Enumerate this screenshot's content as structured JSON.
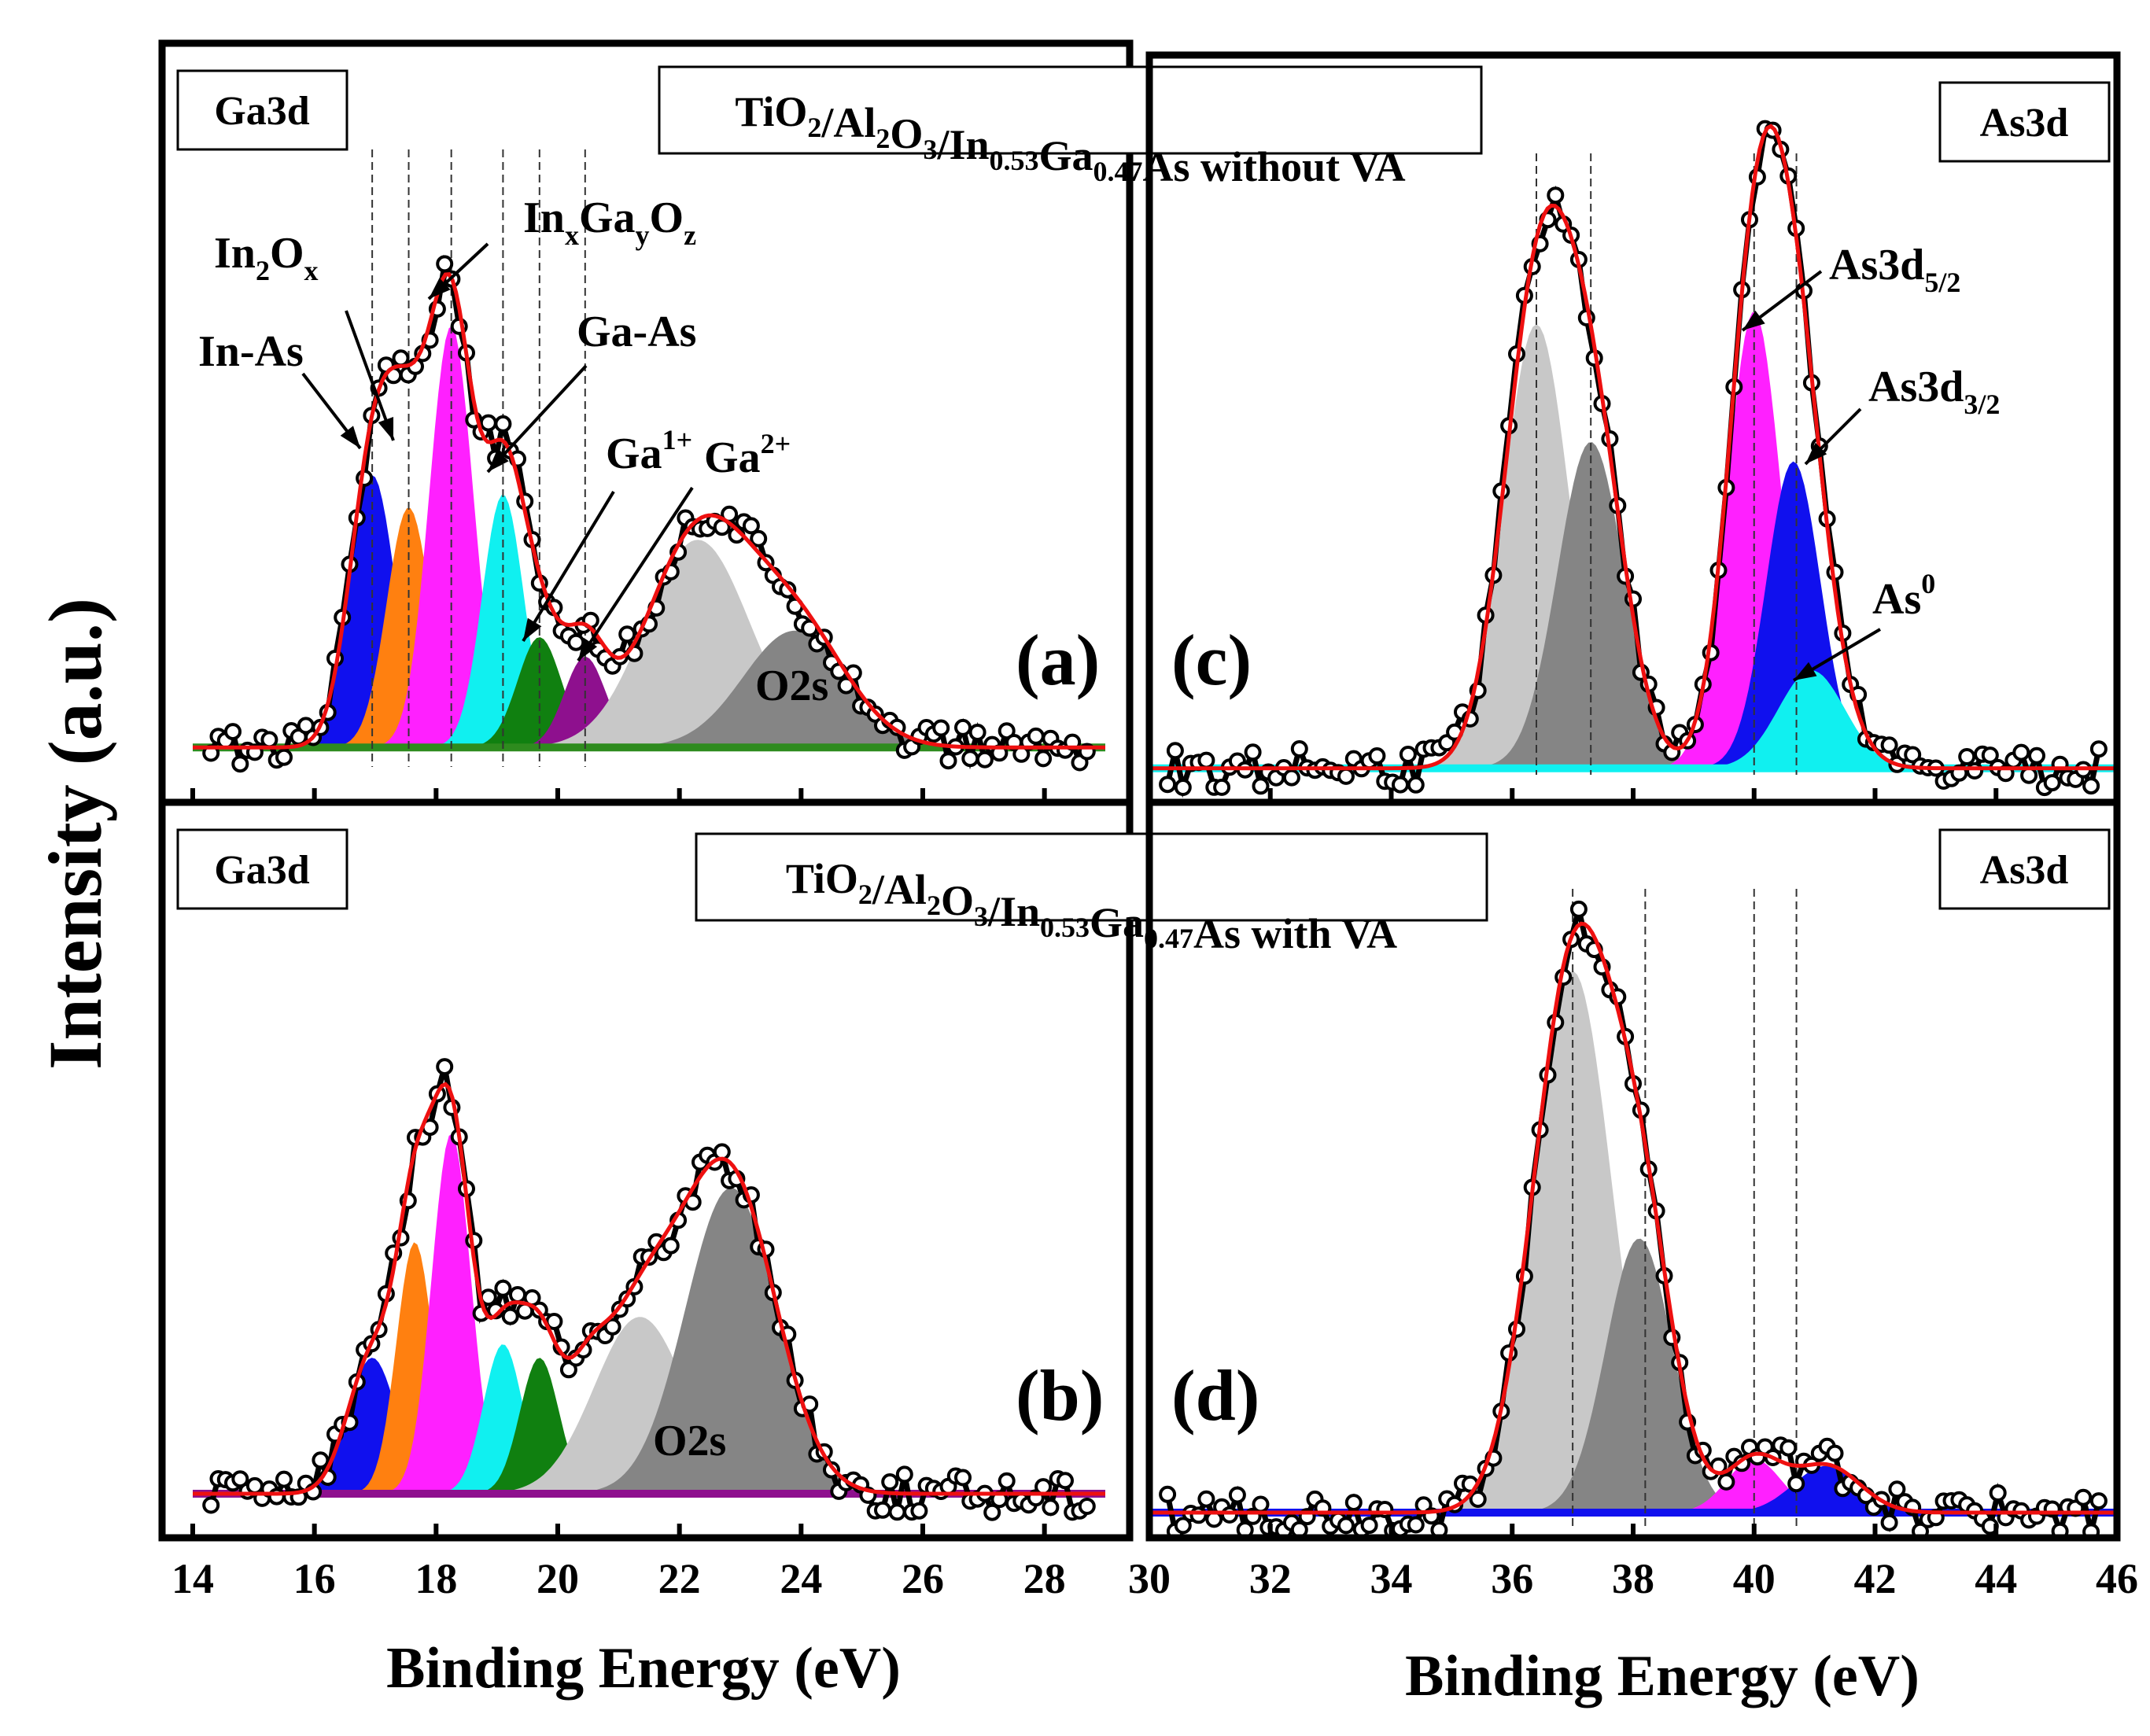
{
  "figure": {
    "ylabel": "Intensity (a.u.)",
    "xlabel_left": "Binding Energy (eV)",
    "xlabel_right": "Binding Energy (eV)"
  },
  "chart_data": [
    {
      "id": "a",
      "type": "line",
      "panel_label": "(a)",
      "core_level": "Ga3d",
      "title": "TiO2/Al2O3/In0.53Ga0.47As without VA",
      "xlim": [
        14,
        29
      ],
      "ylim": [
        0,
        100
      ],
      "baseline": 3,
      "baseline_color": "#2e8b1e",
      "components": [
        {
          "name": "In-As",
          "center": 16.95,
          "height": 42,
          "width": 0.38,
          "color": "#1010ee"
        },
        {
          "name": "In2Ox",
          "center": 17.55,
          "height": 37,
          "width": 0.36,
          "color": "#ff8010"
        },
        {
          "name": "InxGayOz",
          "center": 18.25,
          "height": 65,
          "width": 0.36,
          "color": "#ff20ff"
        },
        {
          "name": "Ga-As",
          "center": 19.1,
          "height": 39,
          "width": 0.34,
          "color": "#10f0f0"
        },
        {
          "name": "Ga1+",
          "center": 19.7,
          "height": 17,
          "width": 0.36,
          "color": "#108010"
        },
        {
          "name": "Ga2+",
          "center": 20.45,
          "height": 14,
          "width": 0.34,
          "color": "#8e108e"
        },
        {
          "name": "",
          "center": 22.3,
          "height": 32,
          "width": 0.85,
          "color": "#c8c8c8"
        },
        {
          "name": "O2s",
          "center": 23.9,
          "height": 18,
          "width": 0.85,
          "color": "#858585"
        }
      ],
      "vlines": [
        16.95,
        17.55,
        18.25,
        19.1,
        19.7,
        20.45
      ],
      "annotations": [
        {
          "text": "In-As",
          "sub": []
        },
        {
          "text": "In2Ox",
          "sub": [
            "2",
            "x"
          ]
        },
        {
          "text": "InxGayOz",
          "sub": [
            "x",
            "y",
            "z"
          ]
        },
        {
          "text": "Ga-As",
          "sub": []
        },
        {
          "text": "Ga1+",
          "sup": "1+"
        },
        {
          "text": "Ga2+",
          "sup": "2+"
        },
        {
          "text": "O2s",
          "sub": []
        }
      ]
    },
    {
      "id": "b",
      "type": "line",
      "panel_label": "(b)",
      "core_level": "Ga3d",
      "title": "TiO2/Al2O3/In0.53Ga0.47As with VA",
      "xlim": [
        14,
        29
      ],
      "ylim": [
        0,
        100
      ],
      "baseline": 3,
      "baseline_color": "#8e108e",
      "components": [
        {
          "name": "In-As",
          "center": 16.95,
          "height": 20,
          "width": 0.4,
          "color": "#1010ee"
        },
        {
          "name": "In2Ox",
          "center": 17.65,
          "height": 37,
          "width": 0.3,
          "color": "#ff8010"
        },
        {
          "name": "InxGayOz",
          "center": 18.25,
          "height": 53,
          "width": 0.32,
          "color": "#ff20ff"
        },
        {
          "name": "Ga-As",
          "center": 19.1,
          "height": 22,
          "width": 0.32,
          "color": "#10f0f0"
        },
        {
          "name": "Ga1+",
          "center": 19.7,
          "height": 20,
          "width": 0.32,
          "color": "#108010"
        },
        {
          "name": "Ga2+",
          "center": 20.45,
          "height": 8,
          "width": 0.32,
          "color": "#8e108e"
        },
        {
          "name": "",
          "center": 21.35,
          "height": 26,
          "width": 0.75,
          "color": "#c8c8c8"
        },
        {
          "name": "O2s",
          "center": 22.85,
          "height": 45,
          "width": 0.75,
          "color": "#858585"
        }
      ],
      "annotations": [
        {
          "text": "O2s",
          "sub": []
        }
      ]
    },
    {
      "id": "c",
      "type": "line",
      "panel_label": "(c)",
      "core_level": "As3d",
      "xlim": [
        30,
        46
      ],
      "ylim": [
        0,
        100
      ],
      "baseline": 1,
      "baseline_color": "#10f0f0",
      "components": [
        {
          "name": "",
          "center": 36.4,
          "height": 68,
          "width": 0.55,
          "color": "#c8c8c8"
        },
        {
          "name": "",
          "center": 37.3,
          "height": 50,
          "width": 0.55,
          "color": "#858585"
        },
        {
          "name": "As3d5/2",
          "center": 40.0,
          "height": 70,
          "width": 0.45,
          "color": "#ff20ff"
        },
        {
          "name": "As3d3/2",
          "center": 40.65,
          "height": 47,
          "width": 0.45,
          "color": "#1010ee"
        },
        {
          "name": "As0",
          "center": 40.95,
          "height": 15,
          "width": 0.55,
          "color": "#10f0f0"
        }
      ],
      "vlines": [
        36.4,
        37.3,
        40.0,
        40.7
      ],
      "annotations": [
        {
          "text": "As3d5/2",
          "sub": "5/2"
        },
        {
          "text": "As3d3/2",
          "sub": "3/2"
        },
        {
          "text": "As0",
          "sup": "0"
        }
      ]
    },
    {
      "id": "d",
      "type": "line",
      "panel_label": "(d)",
      "core_level": "As3d",
      "xlim": [
        30,
        46
      ],
      "xticks": [
        30,
        32,
        34,
        36,
        38,
        40,
        42,
        44,
        46
      ],
      "ylim": [
        0,
        100
      ],
      "baseline": 2,
      "baseline_color": "#1010ee",
      "components": [
        {
          "name": "",
          "center": 37.0,
          "height": 81,
          "width": 0.65,
          "color": "#c8c8c8"
        },
        {
          "name": "",
          "center": 38.1,
          "height": 41,
          "width": 0.55,
          "color": "#858585"
        },
        {
          "name": "",
          "center": 40.0,
          "height": 8,
          "width": 0.45,
          "color": "#ff20ff"
        },
        {
          "name": "",
          "center": 41.2,
          "height": 7,
          "width": 0.55,
          "color": "#1010ee"
        }
      ],
      "vlines": [
        37.0,
        38.2,
        40.0,
        40.7
      ]
    }
  ],
  "xticks_left": [
    14,
    16,
    18,
    20,
    22,
    24,
    26,
    28
  ],
  "xticks_right": [
    30,
    32,
    34,
    36,
    38,
    40,
    42,
    44,
    46
  ]
}
